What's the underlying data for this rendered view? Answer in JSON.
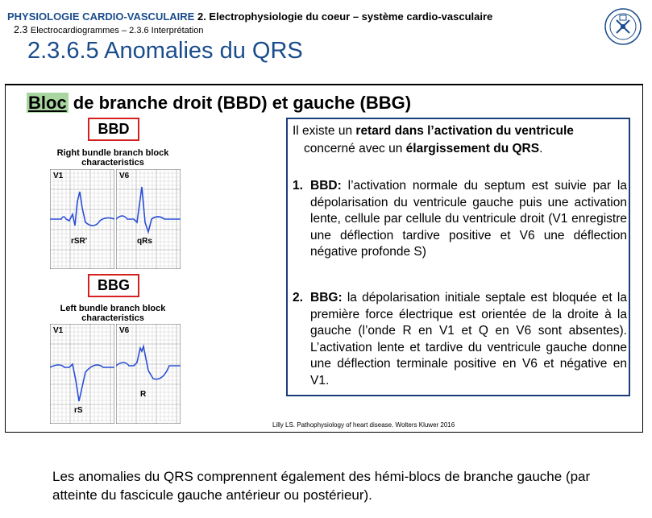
{
  "header": {
    "course": "PHYSIOLOGIE CARDIO-VASCULAIRE",
    "chapter": "2. Electrophysiologie du coeur – système cardio-vasculaire",
    "section_num": "2.3",
    "section": "Electrocardiogrammes – 2.3.6 Interprétation",
    "title": "2.3.6.5 Anomalies du QRS"
  },
  "slide": {
    "heading_hl": "Bloc",
    "heading_rest": " de branche droit (BBD) et gauche (BBG)",
    "bbd_label": "BBD",
    "bbg_label": "BBG",
    "rbbb": {
      "title_line1": "Right bundle branch block",
      "title_line2": "characteristics",
      "lead1": "V1",
      "lead2": "V6",
      "pattern1": "rSR'",
      "pattern2": "qRs"
    },
    "lbbb": {
      "title_line1": "Left bundle branch block",
      "title_line2": "characteristics",
      "lead1": "V1",
      "lead2": "V6",
      "pattern1": "rS",
      "pattern2": "R"
    },
    "intro_a": "Il existe un ",
    "intro_b": "retard dans l’activation du ventricule",
    "intro_c": "concerné avec un ",
    "intro_d": "élargissement du QRS",
    "intro_e": ".",
    "item1_num": "1.",
    "item1_bold": "BBD:",
    "item1_text": " l’activation normale du septum est suivie par la dépolarisation du ventricule gauche puis une activation lente, cellule par cellule du ventricule droit (V1 enregistre une déflection tardive positive et V6 une déflection négative profonde S)",
    "item2_num": "2.",
    "item2_bold": "BBG:",
    "item2_text": " la dépolarisation initiale septale est bloquée et la première force électrique est orientée de la droite à la gauche (l’onde R en V1 et Q en V6 sont absentes). L’activation lente et tardive du ventricule gauche donne une déflection terminale positive en V6 et négative en V1.",
    "citation": "Lilly LS. Pathophysiology of heart disease. Wolters Kluwer 2016"
  },
  "footer_text": "Les anomalies du QRS comprennent également des hémi-blocs de branche gauche (par atteinte du fascicule gauche antérieur ou postérieur).",
  "colors": {
    "accent_blue": "#1b4d8c",
    "box_red": "#d42020",
    "highlight_green": "#a8d5a0",
    "trace_blue": "#2a4fd6"
  }
}
